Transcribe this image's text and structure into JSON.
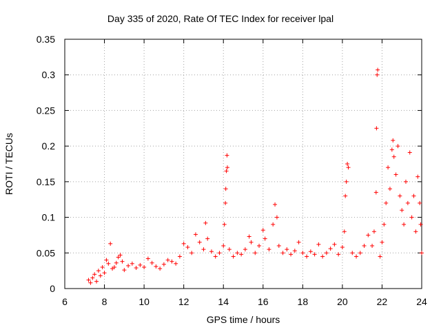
{
  "chart_data": {
    "type": "scatter",
    "title": "Day 335 of 2020, Rate Of TEC Index for receiver lpal",
    "xlabel": "GPS time / hours",
    "ylabel": "ROTI / TECUs",
    "xlim": [
      6,
      24
    ],
    "ylim": [
      0,
      0.35
    ],
    "x_ticks": [
      6,
      8,
      10,
      12,
      14,
      16,
      18,
      20,
      22,
      24
    ],
    "y_ticks": [
      0,
      0.05,
      0.1,
      0.15,
      0.2,
      0.25,
      0.3,
      0.35
    ],
    "x_tick_labels": [
      "6",
      "8",
      "10",
      "12",
      "14",
      "16",
      "18",
      "20",
      "22",
      "24"
    ],
    "y_tick_labels": [
      "0",
      "0.05",
      "0.1",
      "0.15",
      "0.2",
      "0.25",
      "0.3",
      "0.35"
    ],
    "grid": true,
    "marker": "+",
    "color": "#ff0000",
    "series": [
      {
        "name": "ROTI",
        "points": [
          [
            7.2,
            0.012
          ],
          [
            7.3,
            0.008
          ],
          [
            7.4,
            0.015
          ],
          [
            7.5,
            0.02
          ],
          [
            7.6,
            0.01
          ],
          [
            7.7,
            0.025
          ],
          [
            7.8,
            0.018
          ],
          [
            7.9,
            0.03
          ],
          [
            8.0,
            0.022
          ],
          [
            8.1,
            0.04
          ],
          [
            8.2,
            0.035
          ],
          [
            8.3,
            0.063
          ],
          [
            8.4,
            0.028
          ],
          [
            8.5,
            0.03
          ],
          [
            8.6,
            0.036
          ],
          [
            8.7,
            0.044
          ],
          [
            8.8,
            0.047
          ],
          [
            8.9,
            0.038
          ],
          [
            9.0,
            0.026
          ],
          [
            9.2,
            0.032
          ],
          [
            9.4,
            0.035
          ],
          [
            9.6,
            0.029
          ],
          [
            9.8,
            0.033
          ],
          [
            10.0,
            0.03
          ],
          [
            10.2,
            0.042
          ],
          [
            10.4,
            0.036
          ],
          [
            10.6,
            0.031
          ],
          [
            10.8,
            0.028
          ],
          [
            11.0,
            0.034
          ],
          [
            11.2,
            0.04
          ],
          [
            11.4,
            0.038
          ],
          [
            11.6,
            0.035
          ],
          [
            11.8,
            0.045
          ],
          [
            12.0,
            0.063
          ],
          [
            12.2,
            0.058
          ],
          [
            12.4,
            0.05
          ],
          [
            12.6,
            0.076
          ],
          [
            12.8,
            0.065
          ],
          [
            13.0,
            0.055
          ],
          [
            13.1,
            0.092
          ],
          [
            13.2,
            0.07
          ],
          [
            13.4,
            0.052
          ],
          [
            13.6,
            0.045
          ],
          [
            13.8,
            0.05
          ],
          [
            14.0,
            0.06
          ],
          [
            14.05,
            0.09
          ],
          [
            14.1,
            0.12
          ],
          [
            14.12,
            0.14
          ],
          [
            14.15,
            0.165
          ],
          [
            14.18,
            0.187
          ],
          [
            14.2,
            0.17
          ],
          [
            14.3,
            0.055
          ],
          [
            14.5,
            0.045
          ],
          [
            14.7,
            0.05
          ],
          [
            14.9,
            0.048
          ],
          [
            15.1,
            0.055
          ],
          [
            15.3,
            0.073
          ],
          [
            15.4,
            0.065
          ],
          [
            15.6,
            0.05
          ],
          [
            15.8,
            0.06
          ],
          [
            16.0,
            0.082
          ],
          [
            16.1,
            0.07
          ],
          [
            16.3,
            0.055
          ],
          [
            16.5,
            0.09
          ],
          [
            16.6,
            0.118
          ],
          [
            16.7,
            0.1
          ],
          [
            16.8,
            0.06
          ],
          [
            17.0,
            0.05
          ],
          [
            17.2,
            0.055
          ],
          [
            17.4,
            0.048
          ],
          [
            17.6,
            0.053
          ],
          [
            17.8,
            0.065
          ],
          [
            18.0,
            0.05
          ],
          [
            18.2,
            0.045
          ],
          [
            18.4,
            0.052
          ],
          [
            18.6,
            0.048
          ],
          [
            18.8,
            0.062
          ],
          [
            19.0,
            0.045
          ],
          [
            19.2,
            0.05
          ],
          [
            19.4,
            0.056
          ],
          [
            19.6,
            0.062
          ],
          [
            19.8,
            0.048
          ],
          [
            20.0,
            0.058
          ],
          [
            20.1,
            0.08
          ],
          [
            20.15,
            0.13
          ],
          [
            20.2,
            0.15
          ],
          [
            20.25,
            0.175
          ],
          [
            20.3,
            0.17
          ],
          [
            20.5,
            0.05
          ],
          [
            20.7,
            0.045
          ],
          [
            20.9,
            0.05
          ],
          [
            21.1,
            0.06
          ],
          [
            21.3,
            0.075
          ],
          [
            21.5,
            0.06
          ],
          [
            21.6,
            0.08
          ],
          [
            21.7,
            0.135
          ],
          [
            21.72,
            0.225
          ],
          [
            21.75,
            0.3
          ],
          [
            21.78,
            0.307
          ],
          [
            21.9,
            0.045
          ],
          [
            22.0,
            0.065
          ],
          [
            22.1,
            0.09
          ],
          [
            22.2,
            0.12
          ],
          [
            22.3,
            0.17
          ],
          [
            22.4,
            0.14
          ],
          [
            22.5,
            0.195
          ],
          [
            22.55,
            0.208
          ],
          [
            22.6,
            0.185
          ],
          [
            22.7,
            0.16
          ],
          [
            22.8,
            0.2
          ],
          [
            22.9,
            0.13
          ],
          [
            23.0,
            0.11
          ],
          [
            23.1,
            0.09
          ],
          [
            23.2,
            0.15
          ],
          [
            23.3,
            0.12
          ],
          [
            23.4,
            0.191
          ],
          [
            23.5,
            0.1
          ],
          [
            23.6,
            0.13
          ],
          [
            23.7,
            0.08
          ],
          [
            23.8,
            0.157
          ],
          [
            23.9,
            0.12
          ],
          [
            23.95,
            0.09
          ],
          [
            24.0,
            0.05
          ]
        ]
      }
    ]
  }
}
